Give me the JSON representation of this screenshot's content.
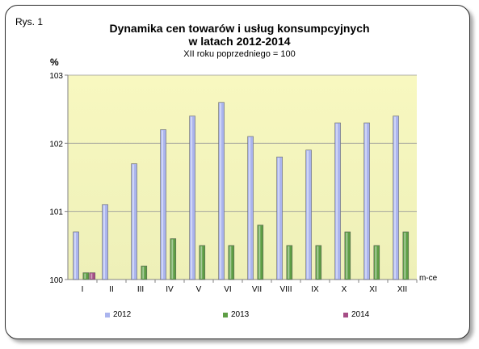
{
  "figure_label": "Rys. 1",
  "chart_data": {
    "type": "bar",
    "title_line1": "Dynamika cen towarów i usług konsumpcyjnych",
    "title_line2": "w latach 2012-2014",
    "subtitle": "XII roku poprzedniego = 100",
    "ylabel": "%",
    "xlabel": "m-ce",
    "categories": [
      "I",
      "II",
      "III",
      "IV",
      "V",
      "VI",
      "VII",
      "VIII",
      "IX",
      "X",
      "XI",
      "XII"
    ],
    "ylim": [
      100,
      103
    ],
    "yticks": [
      100,
      101,
      102,
      103
    ],
    "grid": true,
    "legend_position": "bottom",
    "series": [
      {
        "name": "2012",
        "color": "#aab4ee",
        "values": [
          100.7,
          101.1,
          101.7,
          102.2,
          102.4,
          102.6,
          102.1,
          101.8,
          101.9,
          102.3,
          102.3,
          102.4
        ]
      },
      {
        "name": "2013",
        "color": "#5e9e45",
        "values": [
          100.1,
          100.0,
          100.2,
          100.6,
          100.5,
          100.5,
          100.8,
          100.5,
          100.5,
          100.7,
          100.5,
          100.7
        ]
      },
      {
        "name": "2014",
        "color": "#a64d86",
        "values": [
          100.1,
          null,
          null,
          null,
          null,
          null,
          null,
          null,
          null,
          null,
          null,
          null
        ]
      }
    ]
  }
}
